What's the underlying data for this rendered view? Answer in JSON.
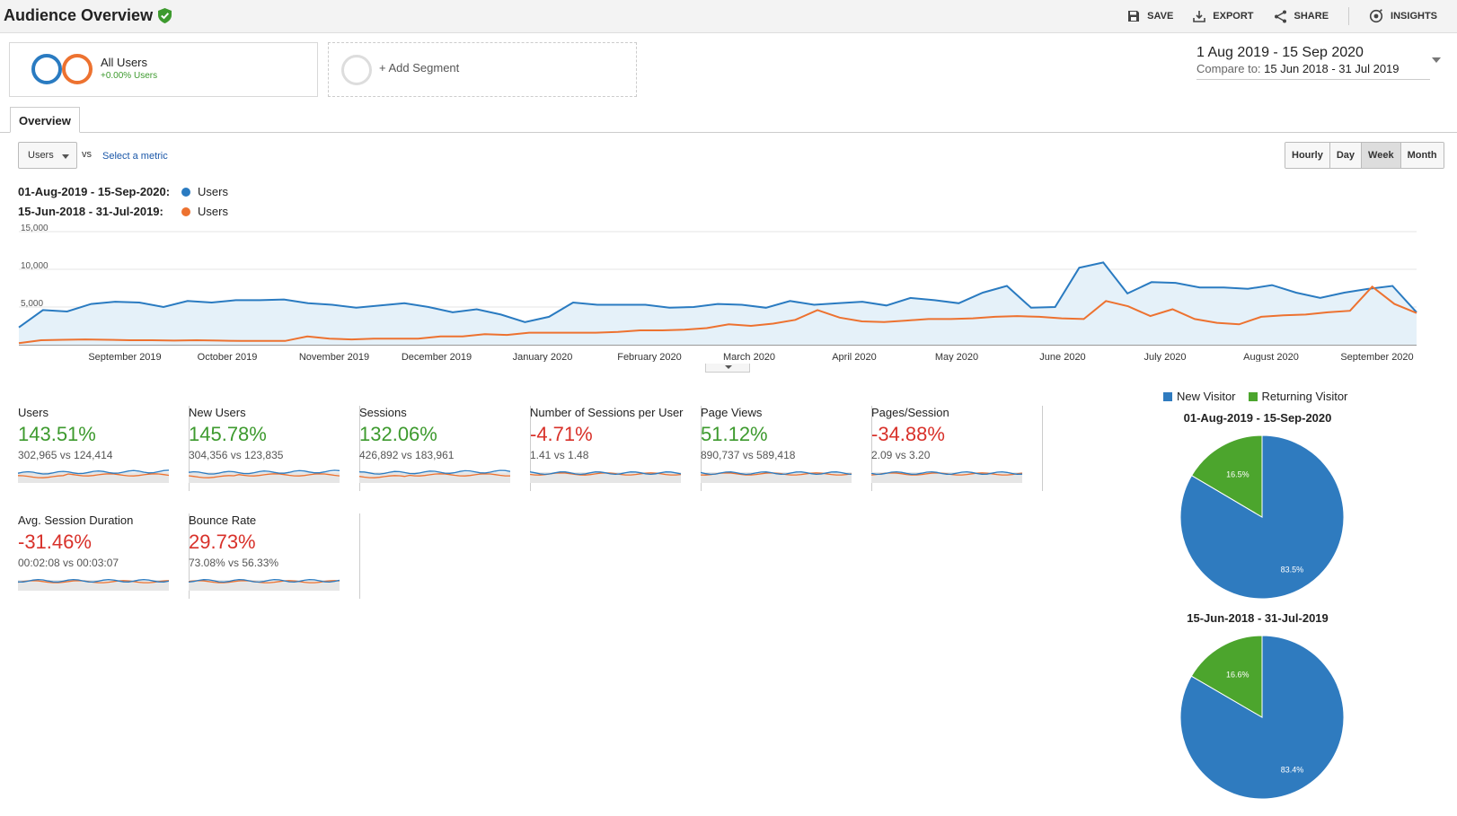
{
  "header": {
    "title": "Audience Overview",
    "toolbar": [
      {
        "label": "SAVE",
        "icon": "save-icon"
      },
      {
        "label": "EXPORT",
        "icon": "export-icon"
      },
      {
        "label": "SHARE",
        "icon": "share-icon"
      },
      {
        "label": "INSIGHTS",
        "icon": "insights-icon"
      }
    ]
  },
  "segments": {
    "all_users": {
      "name": "All Users",
      "change": "+0.00% Users"
    },
    "add_label": "+ Add Segment"
  },
  "date_range": {
    "main": "1 Aug 2019 - 15 Sep 2020",
    "compare_label": "Compare to:",
    "compare_value": "15 Jun 2018 - 31 Jul 2019"
  },
  "tabs": {
    "overview": "Overview"
  },
  "controls": {
    "metric": "Users",
    "vs": "vs",
    "select_metric": "Select a metric",
    "granularity": [
      "Hourly",
      "Day",
      "Week",
      "Month"
    ],
    "active_granularity": "Week"
  },
  "legend": [
    {
      "range": "01-Aug-2019 - 15-Sep-2020:",
      "name": "Users",
      "color": "#2a7bc1"
    },
    {
      "range": "15-Jun-2018 - 31-Jul-2019:",
      "name": "Users",
      "color": "#ed7230"
    }
  ],
  "colors": {
    "current": "#2a7bc1",
    "previous": "#ed7230",
    "green": "#3d9a2e",
    "red": "#d8312a",
    "new_visitor": "#2f7bbf",
    "returning_visitor": "#4ca52d"
  },
  "chart_data": {
    "type": "line",
    "y_ticks": [
      "15,000",
      "10,000",
      "5,000"
    ],
    "ylim": [
      0,
      15000
    ],
    "x_labels": [
      "September 2019",
      "October 2019",
      "November 2019",
      "December 2019",
      "January 2020",
      "February 2020",
      "March 2020",
      "April 2020",
      "May 2020",
      "June 2020",
      "July 2020",
      "August 2020",
      "September 2020"
    ],
    "series": [
      {
        "name": "Users",
        "values": [
          2300,
          4600,
          4400,
          5400,
          5700,
          5600,
          5000,
          5800,
          5600,
          5900,
          5900,
          6000,
          5500,
          5300,
          4900,
          5200,
          5500,
          5000,
          4300,
          4700,
          4000,
          3000,
          3700,
          5600,
          5300,
          5300,
          5300,
          4900,
          5000,
          5400,
          5300,
          4900,
          5800,
          5300,
          5500,
          5700,
          5200,
          6200,
          5900,
          5500,
          6900,
          7800,
          4900,
          5000,
          10200,
          10900,
          6800,
          8300,
          8200,
          7600,
          7600,
          7400,
          7900,
          6900,
          6200,
          6900,
          7400,
          7800,
          4300
        ]
      },
      {
        "name": "Users",
        "values": [
          200,
          600,
          650,
          700,
          650,
          600,
          600,
          550,
          600,
          550,
          500,
          500,
          500,
          1100,
          800,
          700,
          800,
          800,
          800,
          1100,
          1100,
          1400,
          1300,
          1600,
          1600,
          1600,
          1600,
          1700,
          1900,
          1900,
          2000,
          2200,
          2700,
          2500,
          2800,
          3300,
          4600,
          3600,
          3100,
          3000,
          3200,
          3400,
          3400,
          3500,
          3700,
          3800,
          3700,
          3500,
          3400,
          5800,
          5100,
          3800,
          4700,
          3400,
          2900,
          2700,
          3700,
          3900,
          4000,
          4300,
          4500,
          7700,
          5400,
          4200
        ]
      }
    ]
  },
  "metrics": [
    {
      "title": "Users",
      "pct": "143.51%",
      "vals": "302,965 vs 124,414",
      "trend": "green"
    },
    {
      "title": "New Users",
      "pct": "145.78%",
      "vals": "304,356 vs 123,835",
      "trend": "green"
    },
    {
      "title": "Sessions",
      "pct": "132.06%",
      "vals": "426,892 vs 183,961",
      "trend": "green"
    },
    {
      "title": "Number of Sessions per User",
      "pct": "-4.71%",
      "vals": "1.41 vs 1.48",
      "trend": "red"
    },
    {
      "title": "Page Views",
      "pct": "51.12%",
      "vals": "890,737 vs 589,418",
      "trend": "green"
    },
    {
      "title": "Pages/Session",
      "pct": "-34.88%",
      "vals": "2.09 vs 3.20",
      "trend": "red"
    },
    {
      "title": "Avg. Session Duration",
      "pct": "-31.46%",
      "vals": "00:02:08 vs 00:03:07",
      "trend": "red"
    },
    {
      "title": "Bounce Rate",
      "pct": "29.73%",
      "vals": "73.08% vs 56.33%",
      "trend": "red"
    }
  ],
  "pies": {
    "legend": [
      {
        "name": "New Visitor",
        "color": "#2f7bbf"
      },
      {
        "name": "Returning Visitor",
        "color": "#4ca52d"
      }
    ],
    "charts": [
      {
        "title": "01-Aug-2019 - 15-Sep-2020",
        "slices": [
          {
            "name": "New Visitor",
            "value": 83.5,
            "label": "83.5%"
          },
          {
            "name": "Returning Visitor",
            "value": 16.5,
            "label": "16.5%"
          }
        ]
      },
      {
        "title": "15-Jun-2018 - 31-Jul-2019",
        "slices": [
          {
            "name": "New Visitor",
            "value": 83.4,
            "label": "83.4%"
          },
          {
            "name": "Returning Visitor",
            "value": 16.6,
            "label": "16.6%"
          }
        ]
      }
    ]
  }
}
